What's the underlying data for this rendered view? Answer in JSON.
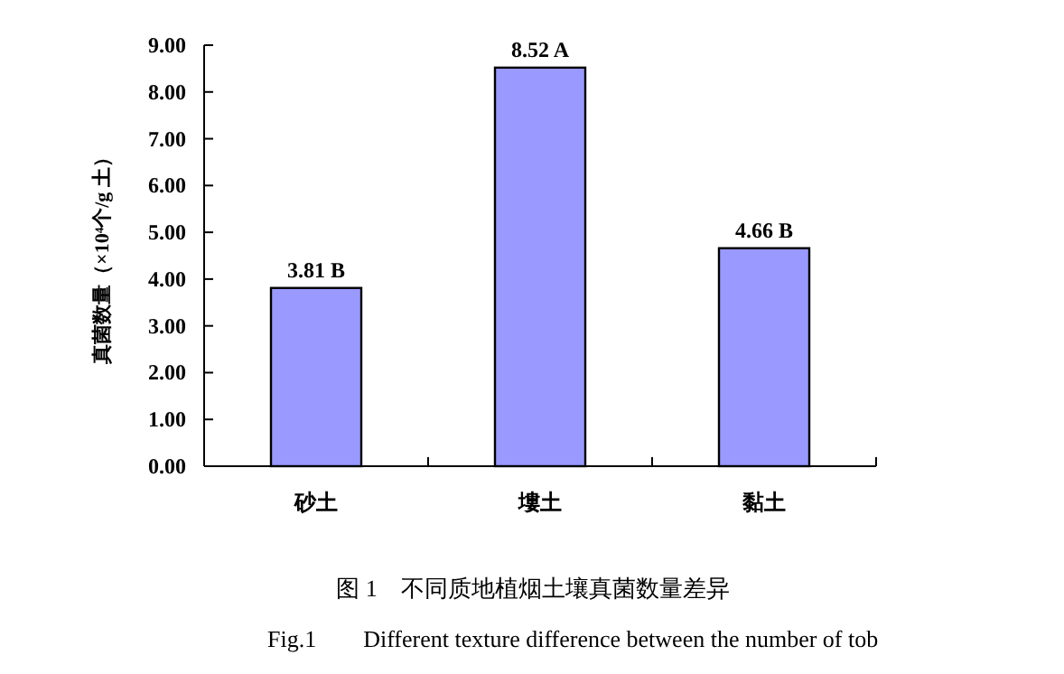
{
  "chart_data": {
    "type": "bar",
    "ylabel": "真菌数量（×10⁴个/g 土）",
    "categories": [
      "砂土",
      "塿土",
      "黏土"
    ],
    "values": [
      3.81,
      8.52,
      4.66
    ],
    "value_labels": [
      "3.81 B",
      "8.52 A",
      "4.66 B"
    ],
    "color": "#9999ff",
    "ylim": [
      0,
      9
    ],
    "yticks": [
      {
        "value": 0,
        "label": "0.00"
      },
      {
        "value": 1,
        "label": "1.00"
      },
      {
        "value": 2,
        "label": "2.00"
      },
      {
        "value": 3,
        "label": "3.00"
      },
      {
        "value": 4,
        "label": "4.00"
      },
      {
        "value": 5,
        "label": "5.00"
      },
      {
        "value": 6,
        "label": "6.00"
      },
      {
        "value": 7,
        "label": "7.00"
      },
      {
        "value": 8,
        "label": "8.00"
      },
      {
        "value": 9,
        "label": "9.00"
      }
    ],
    "annotations": [
      "图 1　不同质地植烟土壤真菌数量差异",
      "Fig.1　　Different texture difference between the number of tob"
    ]
  }
}
